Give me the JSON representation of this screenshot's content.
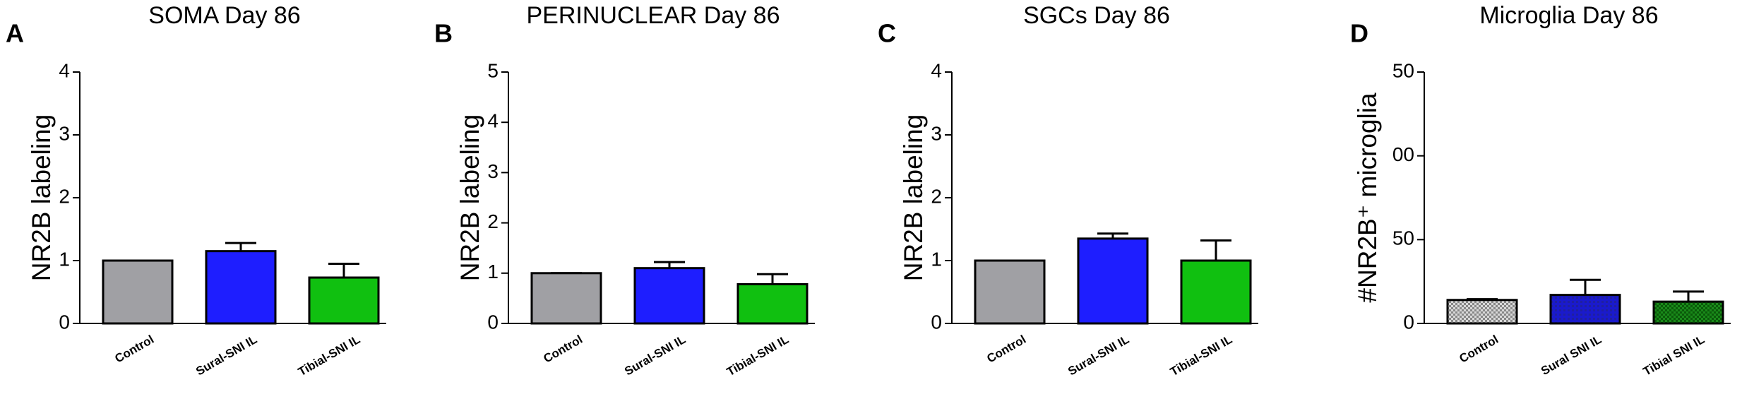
{
  "chart_data": [
    {
      "type": "bar",
      "panel_label": "A",
      "title": "SOMA Day 86",
      "ylabel": "NR2B labeling",
      "categories": [
        "Control",
        "Sural-SNI IL",
        "Tibial-SNI IL"
      ],
      "values": [
        1.0,
        1.15,
        0.73
      ],
      "errors": [
        0,
        0.13,
        0.22
      ],
      "colors": [
        "#a0a0a4",
        "#1e1eff",
        "#10c010"
      ],
      "ylim": [
        0,
        4
      ],
      "yticks": [
        0,
        1,
        2,
        3,
        4
      ]
    },
    {
      "type": "bar",
      "panel_label": "B",
      "title": "PERINUCLEAR Day 86",
      "ylabel": "NR2B labeling",
      "categories": [
        "Control",
        "Sural-SNI IL",
        "Tibial-SNI IL"
      ],
      "values": [
        1.0,
        1.1,
        0.78
      ],
      "errors": [
        0,
        0.12,
        0.2
      ],
      "colors": [
        "#a0a0a4",
        "#1e1eff",
        "#10c010"
      ],
      "ylim": [
        0,
        5
      ],
      "yticks": [
        0,
        1,
        2,
        3,
        4,
        5
      ]
    },
    {
      "type": "bar",
      "panel_label": "C",
      "title": "SGCs Day 86",
      "ylabel": "NR2B labeling",
      "categories": [
        "Control",
        "Sural-SNI IL",
        "Tibial-SNI IL"
      ],
      "values": [
        1.0,
        1.35,
        1.0
      ],
      "errors": [
        0,
        0.08,
        0.32
      ],
      "colors": [
        "#a0a0a4",
        "#1e1eff",
        "#10c010"
      ],
      "ylim": [
        0,
        4
      ],
      "yticks": [
        0,
        1,
        2,
        3,
        4
      ]
    },
    {
      "type": "bar",
      "panel_label": "D",
      "title": "Microglia Day 86",
      "ylabel": "#NR2B⁺ microglia",
      "categories": [
        "Control",
        "Sural SNI IL",
        "Tibial SNI IL"
      ],
      "values": [
        14,
        17,
        13
      ],
      "errors": [
        0.5,
        9,
        6
      ],
      "colors": [
        "url(#pg)",
        "url(#pb)",
        "url(#pgr)"
      ],
      "ylim": [
        0,
        150
      ],
      "yticks": [
        0,
        50,
        {
          "value": 100,
          "label": "00"
        },
        {
          "value": 150,
          "label": "50"
        }
      ]
    }
  ]
}
